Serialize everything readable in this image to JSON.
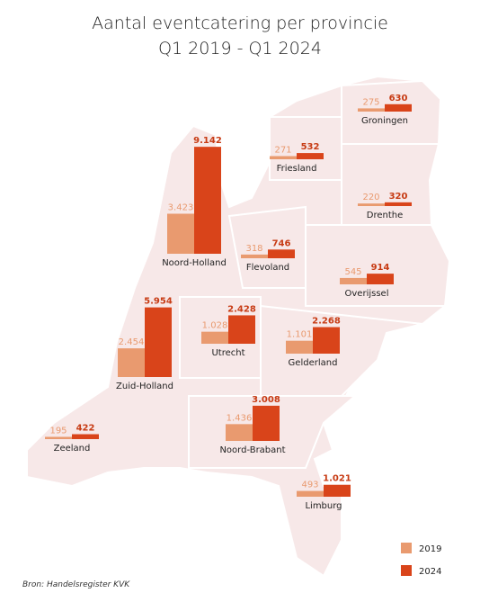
{
  "chart_data": {
    "type": "bar",
    "title": "Aantal eventcatering per provincie",
    "subtitle": "Q1 2019 - Q1 2024",
    "categories": [
      "Groningen",
      "Friesland",
      "Drenthe",
      "Noord-Holland",
      "Flevoland",
      "Overijssel",
      "Utrecht",
      "Gelderland",
      "Zuid-Holland",
      "Noord-Brabant",
      "Zeeland",
      "Limburg"
    ],
    "series": [
      {
        "name": "2019",
        "color": "#e99a6f",
        "values": [
          275,
          271,
          220,
          3423,
          318,
          545,
          1028,
          1101,
          2454,
          1436,
          195,
          493
        ],
        "value_labels": [
          "275",
          "271",
          "220",
          "3.423",
          "318",
          "545",
          "1.028",
          "1.101",
          "2.454",
          "1.436",
          "195",
          "493"
        ]
      },
      {
        "name": "2024",
        "color": "#d9441a",
        "values": [
          630,
          532,
          320,
          9142,
          746,
          914,
          2428,
          2268,
          5954,
          3008,
          422,
          1021
        ],
        "value_labels": [
          "630",
          "532",
          "320",
          "9.142",
          "746",
          "914",
          "2.428",
          "2.268",
          "5.954",
          "3.008",
          "422",
          "1.021"
        ]
      }
    ],
    "source": "Bron: Handelsregister KVK"
  }
}
